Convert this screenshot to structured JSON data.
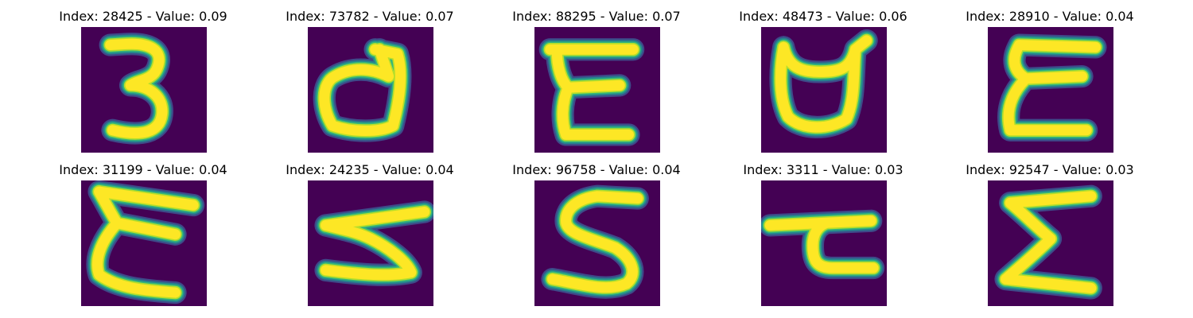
{
  "colors": {
    "background": "#440154",
    "stroke_core": "#fde725",
    "stroke_edge_1": "#b5de2b",
    "stroke_edge_2": "#35b779",
    "stroke_edge_3": "#26828e",
    "stroke_edge_4": "#3e4a89"
  },
  "panels": [
    {
      "title": "Index: 28425 - Value: 0.09",
      "glyph": "three-glyph"
    },
    {
      "title": "Index: 73782 - Value: 0.07",
      "glyph": "d-loop-glyph"
    },
    {
      "title": "Index: 88295 - Value: 0.07",
      "glyph": "epsilon-glyph"
    },
    {
      "title": "Index: 48473 - Value: 0.06",
      "glyph": "cup-glyph"
    },
    {
      "title": "Index: 28910 - Value: 0.04",
      "glyph": "epsilon-glyph"
    },
    {
      "title": "Index: 31199 - Value: 0.04",
      "glyph": "epsilon-glyph"
    },
    {
      "title": "Index: 24235 - Value: 0.04",
      "glyph": "sideways-three-glyph"
    },
    {
      "title": "Index: 96758 - Value: 0.04",
      "glyph": "five-glyph"
    },
    {
      "title": "Index: 3311 - Value: 0.03",
      "glyph": "tau-glyph"
    },
    {
      "title": "Index: 92547 - Value: 0.03",
      "glyph": "sigma-glyph"
    }
  ]
}
